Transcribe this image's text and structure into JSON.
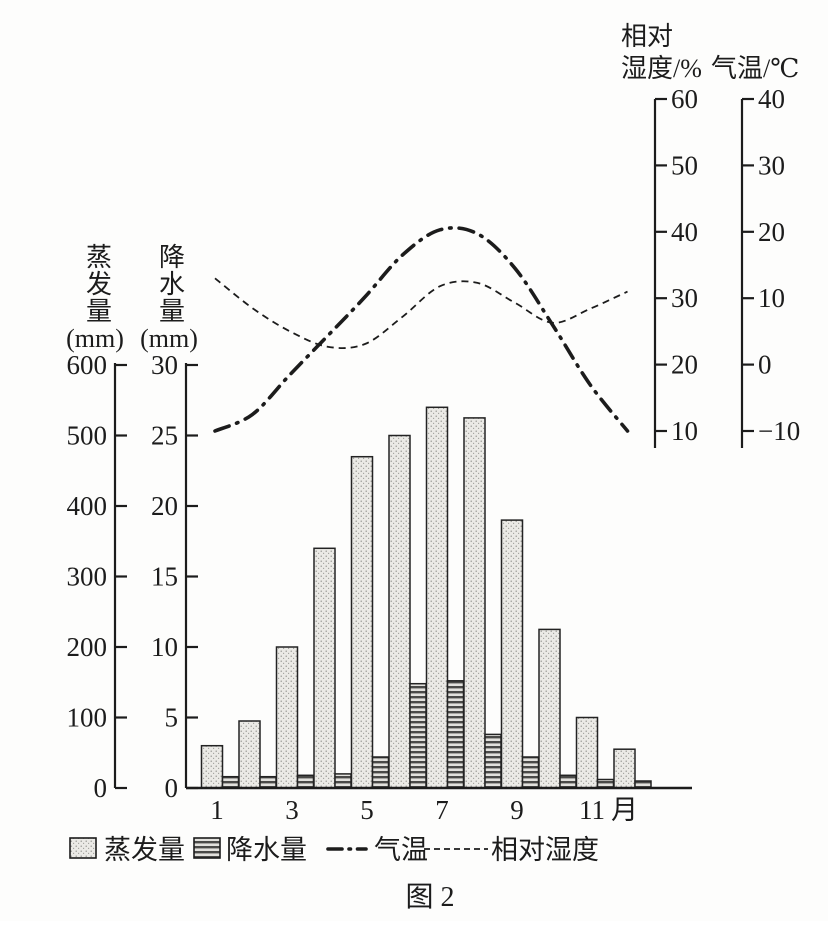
{
  "figure": {
    "caption": "图 2"
  },
  "colors": {
    "ink": "#1c1c1c",
    "background": "#fdfdfc",
    "bar_light_fill": "#ebeae6",
    "bar_light_dot": "#8a8a86",
    "bar_dark_stripe": "#4a4a48",
    "bar_dark_bg": "#e2e1dd"
  },
  "axes": {
    "evaporation": {
      "title": "蒸发量",
      "unit": "(mm)",
      "ticks": [
        600,
        500,
        400,
        300,
        200,
        100,
        0
      ]
    },
    "precipitation": {
      "title": "降水量",
      "unit": "(mm)",
      "ticks": [
        30,
        25,
        20,
        15,
        10,
        5,
        0
      ]
    },
    "humidity": {
      "title_line1": "相对",
      "title_line2": "湿度/%",
      "ticks": [
        60,
        50,
        40,
        30,
        20,
        10
      ]
    },
    "temperature": {
      "title": "气温/℃",
      "ticks": [
        40,
        30,
        20,
        10,
        0,
        -10
      ]
    },
    "months": {
      "tick_labels": [
        "1",
        "3",
        "5",
        "7",
        "9",
        "11"
      ],
      "tick_months": [
        1,
        3,
        5,
        7,
        9,
        11
      ],
      "unit": "月"
    }
  },
  "legend": {
    "evaporation": "蒸发量",
    "precipitation": "降水量",
    "temperature": "气温",
    "humidity": "相对湿度"
  },
  "chart_data": {
    "type": "combo: bar + line",
    "categories_months": [
      1,
      2,
      3,
      4,
      5,
      6,
      7,
      8,
      9,
      10,
      11,
      12
    ],
    "series": [
      {
        "name": "蒸发量",
        "type": "bar",
        "unit": "mm",
        "axis_range": [
          0,
          600
        ],
        "values": [
          60,
          95,
          200,
          340,
          470,
          500,
          540,
          525,
          380,
          225,
          100,
          55
        ]
      },
      {
        "name": "降水量",
        "type": "bar",
        "unit": "mm",
        "axis_range": [
          0,
          30
        ],
        "values": [
          0.8,
          0.8,
          0.9,
          1.0,
          2.2,
          7.4,
          7.6,
          3.8,
          2.2,
          0.9,
          0.6,
          0.5
        ]
      },
      {
        "name": "气温",
        "type": "line",
        "style": "dash-dot",
        "unit": "℃",
        "axis_range": [
          -10,
          40
        ],
        "values": [
          -10,
          -7.5,
          -1.5,
          4.3,
          10.2,
          16.5,
          20.3,
          19.7,
          14.5,
          6,
          -3,
          -10
        ]
      },
      {
        "name": "相对湿度",
        "type": "line",
        "style": "dashed",
        "unit": "%",
        "axis_range": [
          10,
          60
        ],
        "values": [
          33,
          28.5,
          25,
          22.7,
          23.1,
          27.2,
          31.8,
          32.3,
          29.3,
          26.3,
          28.4,
          31
        ]
      }
    ],
    "title": "图 2",
    "xlabel": "月",
    "grid": false,
    "legend_position": "bottom"
  }
}
